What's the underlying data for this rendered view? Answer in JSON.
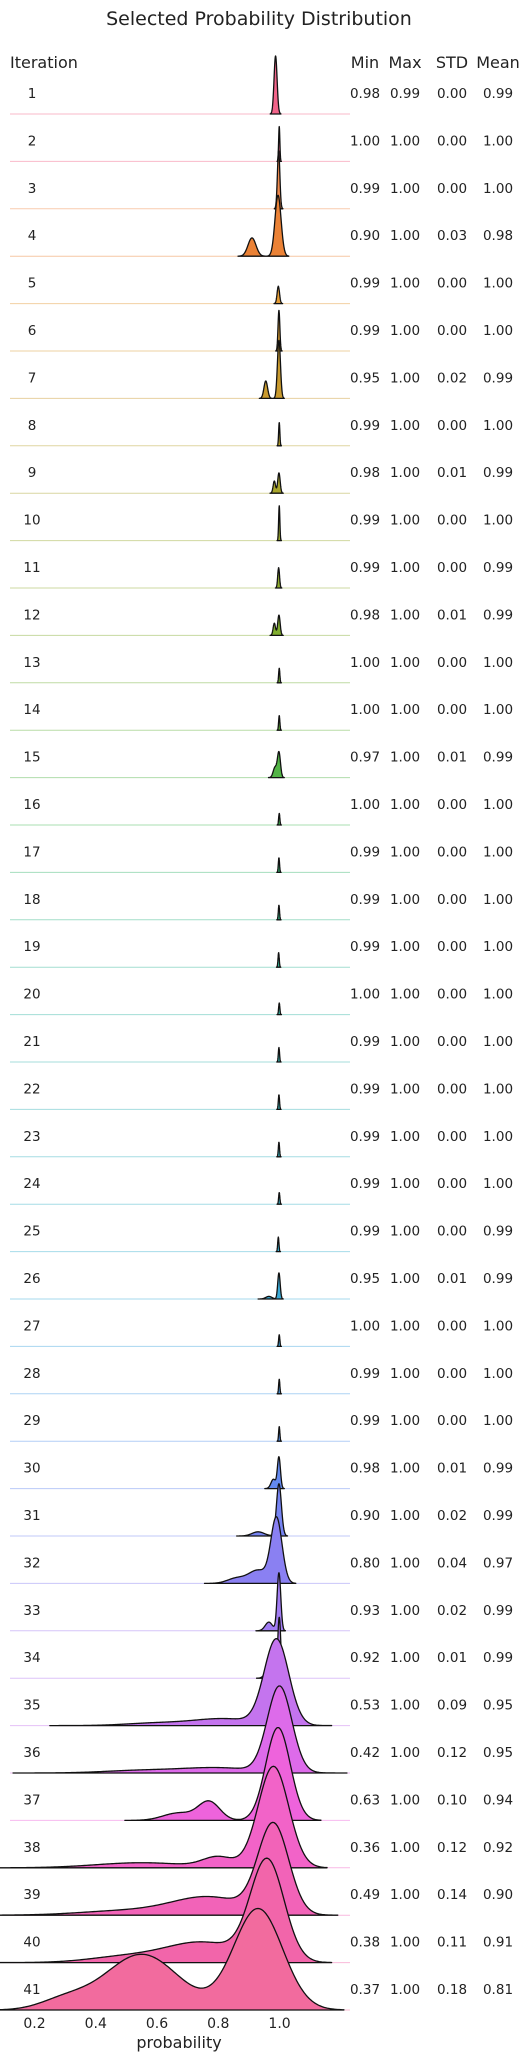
{
  "chart_data": {
    "type": "ridgeline",
    "title": "Selected Probability Distribution",
    "row_header": "Iteration",
    "stat_headers": [
      "Min",
      "Max",
      "STD",
      "Mean"
    ],
    "xlabel": "probability",
    "xticks": [
      "0.2",
      "0.4",
      "0.6",
      "0.8",
      "1.0"
    ],
    "xlim": [
      0.12,
      1.23
    ],
    "grid": false,
    "series": [
      {
        "iteration": "1",
        "color": "#f2648a",
        "stats": [
          "0.98",
          "0.99",
          "0.00",
          "0.99"
        ],
        "peaks": [
          [
            0.987,
            0.005,
            1.0
          ]
        ],
        "height": 1.0
      },
      {
        "iteration": "2",
        "color": "#f2648a",
        "stats": [
          "1.00",
          "1.00",
          "0.00",
          "1.00"
        ],
        "peaks": [
          [
            0.999,
            0.002,
            1.0
          ]
        ],
        "height": 0.6
      },
      {
        "iteration": "3",
        "color": "#f08a4c",
        "stats": [
          "0.99",
          "1.00",
          "0.00",
          "1.00"
        ],
        "peaks": [
          [
            0.997,
            0.004,
            1.0
          ]
        ],
        "height": 1.0
      },
      {
        "iteration": "4",
        "color": "#eb8236",
        "stats": [
          "0.90",
          "1.00",
          "0.03",
          "0.98"
        ],
        "peaks": [
          [
            0.995,
            0.01,
            1.0
          ],
          [
            0.91,
            0.013,
            0.3
          ]
        ],
        "height": 1.05
      },
      {
        "iteration": "5",
        "color": "#e39a32",
        "stats": [
          "0.99",
          "1.00",
          "0.00",
          "1.00"
        ],
        "peaks": [
          [
            0.996,
            0.004,
            1.0
          ]
        ],
        "height": 0.3
      },
      {
        "iteration": "6",
        "color": "#d79b30",
        "stats": [
          "0.99",
          "1.00",
          "0.00",
          "1.00"
        ],
        "peaks": [
          [
            0.998,
            0.003,
            1.0
          ]
        ],
        "height": 0.7
      },
      {
        "iteration": "7",
        "color": "#c99a2e",
        "stats": [
          "0.95",
          "1.00",
          "0.02",
          "0.99"
        ],
        "peaks": [
          [
            0.998,
            0.005,
            1.0
          ],
          [
            0.955,
            0.006,
            0.3
          ]
        ],
        "height": 1.0
      },
      {
        "iteration": "8",
        "color": "#b8a12c",
        "stats": [
          "0.99",
          "1.00",
          "0.00",
          "1.00"
        ],
        "peaks": [
          [
            0.999,
            0.002,
            1.0
          ]
        ],
        "height": 0.4
      },
      {
        "iteration": "9",
        "color": "#a8a52c",
        "stats": [
          "0.98",
          "1.00",
          "0.01",
          "0.99"
        ],
        "peaks": [
          [
            0.998,
            0.004,
            1.0
          ],
          [
            0.983,
            0.004,
            0.6
          ]
        ],
        "height": 0.35
      },
      {
        "iteration": "10",
        "color": "#9aa82c",
        "stats": [
          "0.99",
          "1.00",
          "0.00",
          "1.00"
        ],
        "peaks": [
          [
            0.999,
            0.002,
            1.0
          ]
        ],
        "height": 0.6
      },
      {
        "iteration": "11",
        "color": "#8eab2c",
        "stats": [
          "0.99",
          "1.00",
          "0.00",
          "0.99"
        ],
        "peaks": [
          [
            0.997,
            0.003,
            1.0
          ]
        ],
        "height": 0.35
      },
      {
        "iteration": "12",
        "color": "#80ad2f",
        "stats": [
          "0.98",
          "1.00",
          "0.01",
          "0.99"
        ],
        "peaks": [
          [
            0.998,
            0.004,
            1.0
          ],
          [
            0.983,
            0.004,
            0.6
          ]
        ],
        "height": 0.35
      },
      {
        "iteration": "13",
        "color": "#72b035",
        "stats": [
          "1.00",
          "1.00",
          "0.00",
          "1.00"
        ],
        "peaks": [
          [
            0.999,
            0.002,
            1.0
          ]
        ],
        "height": 0.25
      },
      {
        "iteration": "14",
        "color": "#62b23c",
        "stats": [
          "1.00",
          "1.00",
          "0.00",
          "1.00"
        ],
        "peaks": [
          [
            0.999,
            0.002,
            1.0
          ]
        ],
        "height": 0.25
      },
      {
        "iteration": "15",
        "color": "#52b446",
        "stats": [
          "0.97",
          "1.00",
          "0.01",
          "0.99"
        ],
        "peaks": [
          [
            0.998,
            0.005,
            1.0
          ],
          [
            0.985,
            0.006,
            0.4
          ]
        ],
        "height": 0.45
      },
      {
        "iteration": "16",
        "color": "#3fb750",
        "stats": [
          "1.00",
          "1.00",
          "0.00",
          "1.00"
        ],
        "peaks": [
          [
            0.999,
            0.002,
            1.0
          ]
        ],
        "height": 0.2
      },
      {
        "iteration": "17",
        "color": "#35b66f",
        "stats": [
          "0.99",
          "1.00",
          "0.00",
          "1.00"
        ],
        "peaks": [
          [
            0.998,
            0.002,
            1.0
          ]
        ],
        "height": 0.25
      },
      {
        "iteration": "18",
        "color": "#33b585",
        "stats": [
          "0.99",
          "1.00",
          "0.00",
          "1.00"
        ],
        "peaks": [
          [
            0.998,
            0.002,
            1.0
          ]
        ],
        "height": 0.25
      },
      {
        "iteration": "19",
        "color": "#33b597",
        "stats": [
          "0.99",
          "1.00",
          "0.00",
          "1.00"
        ],
        "peaks": [
          [
            0.997,
            0.002,
            1.0
          ]
        ],
        "height": 0.25
      },
      {
        "iteration": "20",
        "color": "#34b5a4",
        "stats": [
          "1.00",
          "1.00",
          "0.00",
          "1.00"
        ],
        "peaks": [
          [
            0.999,
            0.002,
            1.0
          ]
        ],
        "height": 0.2
      },
      {
        "iteration": "21",
        "color": "#35b4af",
        "stats": [
          "0.99",
          "1.00",
          "0.00",
          "1.00"
        ],
        "peaks": [
          [
            0.998,
            0.002,
            1.0
          ]
        ],
        "height": 0.25
      },
      {
        "iteration": "22",
        "color": "#36b3b8",
        "stats": [
          "0.99",
          "1.00",
          "0.00",
          "1.00"
        ],
        "peaks": [
          [
            0.998,
            0.002,
            1.0
          ]
        ],
        "height": 0.25
      },
      {
        "iteration": "23",
        "color": "#37b2c0",
        "stats": [
          "0.99",
          "1.00",
          "0.00",
          "1.00"
        ],
        "peaks": [
          [
            0.998,
            0.002,
            1.0
          ]
        ],
        "height": 0.25
      },
      {
        "iteration": "24",
        "color": "#38b1c8",
        "stats": [
          "0.99",
          "1.00",
          "0.00",
          "1.00"
        ],
        "peaks": [
          [
            0.999,
            0.002,
            1.0
          ]
        ],
        "height": 0.2
      },
      {
        "iteration": "25",
        "color": "#39b0d1",
        "stats": [
          "0.99",
          "1.00",
          "0.00",
          "0.99"
        ],
        "peaks": [
          [
            0.996,
            0.002,
            1.0
          ]
        ],
        "height": 0.25
      },
      {
        "iteration": "26",
        "color": "#3aa9d5",
        "stats": [
          "0.95",
          "1.00",
          "0.01",
          "0.99"
        ],
        "peaks": [
          [
            0.998,
            0.004,
            1.0
          ],
          [
            0.965,
            0.01,
            0.1
          ]
        ],
        "height": 0.45
      },
      {
        "iteration": "27",
        "color": "#3fa5de",
        "stats": [
          "1.00",
          "1.00",
          "0.00",
          "1.00"
        ],
        "peaks": [
          [
            0.999,
            0.002,
            1.0
          ]
        ],
        "height": 0.2
      },
      {
        "iteration": "28",
        "color": "#4a9ce6",
        "stats": [
          "0.99",
          "1.00",
          "0.00",
          "1.00"
        ],
        "peaks": [
          [
            0.999,
            0.002,
            1.0
          ]
        ],
        "height": 0.25
      },
      {
        "iteration": "29",
        "color": "#5592ec",
        "stats": [
          "0.99",
          "1.00",
          "0.00",
          "1.00"
        ],
        "peaks": [
          [
            0.999,
            0.002,
            1.0
          ]
        ],
        "height": 0.25
      },
      {
        "iteration": "30",
        "color": "#6389f0",
        "stats": [
          "0.98",
          "1.00",
          "0.01",
          "0.99"
        ],
        "peaks": [
          [
            0.998,
            0.005,
            1.0
          ],
          [
            0.98,
            0.008,
            0.3
          ]
        ],
        "height": 0.55
      },
      {
        "iteration": "31",
        "color": "#7684f2",
        "stats": [
          "0.90",
          "1.00",
          "0.02",
          "0.99"
        ],
        "peaks": [
          [
            0.998,
            0.008,
            1.0
          ],
          [
            0.93,
            0.02,
            0.08
          ]
        ],
        "height": 0.9
      },
      {
        "iteration": "32",
        "color": "#8a80f2",
        "stats": [
          "0.80",
          "1.00",
          "0.04",
          "0.97"
        ],
        "peaks": [
          [
            0.99,
            0.018,
            1.0
          ],
          [
            0.93,
            0.03,
            0.2
          ],
          [
            0.86,
            0.03,
            0.08
          ]
        ],
        "height": 1.15
      },
      {
        "iteration": "33",
        "color": "#a17cf2",
        "stats": [
          "0.93",
          "1.00",
          "0.02",
          "0.99"
        ],
        "peaks": [
          [
            0.998,
            0.006,
            1.0
          ],
          [
            0.965,
            0.012,
            0.15
          ]
        ],
        "height": 1.0
      },
      {
        "iteration": "34",
        "color": "#b478f0",
        "stats": [
          "0.92",
          "1.00",
          "0.01",
          "0.99"
        ],
        "peaks": [
          [
            0.999,
            0.005,
            1.0
          ],
          [
            0.96,
            0.01,
            0.1
          ]
        ],
        "height": 1.05
      },
      {
        "iteration": "35",
        "color": "#c474ee",
        "stats": [
          "0.53",
          "1.00",
          "0.09",
          "0.95"
        ],
        "peaks": [
          [
            0.99,
            0.04,
            1.0
          ],
          [
            0.82,
            0.1,
            0.08
          ],
          [
            0.6,
            0.1,
            0.03
          ]
        ],
        "height": 1.5
      },
      {
        "iteration": "36",
        "color": "#dd6bea",
        "stats": [
          "0.42",
          "1.00",
          "0.12",
          "0.95"
        ],
        "peaks": [
          [
            1.0,
            0.04,
            1.0
          ],
          [
            0.8,
            0.12,
            0.06
          ],
          [
            0.55,
            0.12,
            0.03
          ]
        ],
        "height": 1.5
      },
      {
        "iteration": "37",
        "color": "#ee63dc",
        "stats": [
          "0.63",
          "1.00",
          "0.10",
          "0.94"
        ],
        "peaks": [
          [
            0.995,
            0.04,
            1.0
          ],
          [
            0.77,
            0.035,
            0.2
          ],
          [
            0.67,
            0.05,
            0.08
          ]
        ],
        "height": 1.6
      },
      {
        "iteration": "38",
        "color": "#f263c8",
        "stats": [
          "0.36",
          "1.00",
          "0.12",
          "0.92"
        ],
        "peaks": [
          [
            0.98,
            0.05,
            1.0
          ],
          [
            0.8,
            0.05,
            0.1
          ],
          [
            0.55,
            0.15,
            0.05
          ]
        ],
        "height": 1.75
      },
      {
        "iteration": "39",
        "color": "#f263b8",
        "stats": [
          "0.49",
          "1.00",
          "0.14",
          "0.90"
        ],
        "peaks": [
          [
            0.98,
            0.05,
            1.0
          ],
          [
            0.77,
            0.12,
            0.2
          ],
          [
            0.5,
            0.15,
            0.05
          ]
        ],
        "height": 1.6
      },
      {
        "iteration": "40",
        "color": "#f265aa",
        "stats": [
          "0.38",
          "1.00",
          "0.11",
          "0.91"
        ],
        "peaks": [
          [
            0.96,
            0.055,
            1.0
          ],
          [
            0.75,
            0.12,
            0.2
          ],
          [
            0.5,
            0.12,
            0.06
          ]
        ],
        "height": 1.8
      },
      {
        "iteration": "41",
        "color": "#f26b9e",
        "stats": [
          "0.37",
          "1.00",
          "0.18",
          "0.81"
        ],
        "peaks": [
          [
            0.93,
            0.08,
            1.0
          ],
          [
            0.55,
            0.12,
            0.55
          ],
          [
            0.3,
            0.08,
            0.1
          ]
        ],
        "height": 1.75
      }
    ]
  }
}
